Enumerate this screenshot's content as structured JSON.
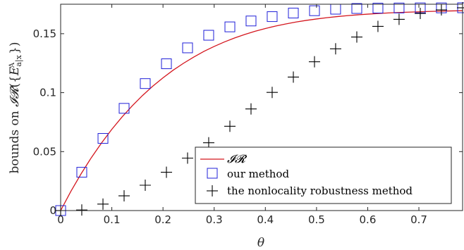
{
  "chart_data": {
    "type": "line",
    "xlabel": "θ",
    "ylabel": "bounds on 𝓘𝓡({E^A_{a|x}})",
    "xlim": [
      0,
      0.785398
    ],
    "ylim": [
      0,
      0.175
    ],
    "xticks": [
      0,
      0.1,
      0.2,
      0.3,
      0.4,
      0.5,
      0.6,
      0.7
    ],
    "xtick_labels": [
      "0",
      "0.1",
      "0.2",
      "0.3",
      "0.4",
      "0.5",
      "0.6",
      "0.7"
    ],
    "yticks": [
      0,
      0.05,
      0.1,
      0.15
    ],
    "ytick_labels": [
      "0",
      "0.05",
      "0.1",
      "0.15"
    ],
    "grid": false,
    "legend_position": "bottom-right",
    "series": [
      {
        "name": "𝓘𝓡",
        "style": "line",
        "color": "#d4161e",
        "x": [
          0,
          0.02,
          0.04,
          0.06,
          0.08,
          0.1,
          0.12,
          0.14,
          0.16,
          0.18,
          0.2,
          0.22,
          0.24,
          0.26,
          0.28,
          0.3,
          0.32,
          0.34,
          0.36,
          0.38,
          0.4,
          0.42,
          0.44,
          0.46,
          0.48,
          0.5,
          0.52,
          0.54,
          0.56,
          0.58,
          0.6,
          0.62,
          0.64,
          0.66,
          0.68,
          0.7,
          0.72,
          0.74,
          0.76,
          0.785
        ],
        "y": [
          0,
          0.0163,
          0.0312,
          0.0449,
          0.0574,
          0.0689,
          0.0794,
          0.0889,
          0.0976,
          0.1055,
          0.1126,
          0.1191,
          0.1249,
          0.1302,
          0.135,
          0.1392,
          0.143,
          0.1464,
          0.1494,
          0.1521,
          0.1544,
          0.1565,
          0.1583,
          0.1599,
          0.1613,
          0.1625,
          0.1636,
          0.1645,
          0.1653,
          0.166,
          0.1666,
          0.1671,
          0.1676,
          0.168,
          0.1683,
          0.1686,
          0.1689,
          0.1691,
          0.1693,
          0.1695
        ]
      },
      {
        "name": "our method",
        "style": "square",
        "color": "#2020d8",
        "x": [
          0,
          0.0413,
          0.0827,
          0.124,
          0.1653,
          0.2067,
          0.248,
          0.2893,
          0.3307,
          0.372,
          0.4133,
          0.4547,
          0.496,
          0.5373,
          0.5787,
          0.62,
          0.6613,
          0.7027,
          0.744,
          0.7854
        ],
        "y": [
          0,
          0.0325,
          0.0612,
          0.0867,
          0.1077,
          0.1245,
          0.138,
          0.1487,
          0.1558,
          0.1608,
          0.1645,
          0.1675,
          0.1695,
          0.1708,
          0.1714,
          0.1717,
          0.1718,
          0.1719,
          0.1719,
          0.172
        ]
      },
      {
        "name": "the nonlocality robustness method",
        "style": "plus",
        "color": "#000000",
        "x": [
          0,
          0.0413,
          0.0827,
          0.124,
          0.1653,
          0.2067,
          0.248,
          0.2893,
          0.3307,
          0.372,
          0.4133,
          0.4547,
          0.496,
          0.5373,
          0.5787,
          0.62,
          0.6613,
          0.7027,
          0.744,
          0.7854
        ],
        "y": [
          0,
          0.0005,
          0.0055,
          0.0125,
          0.0215,
          0.0325,
          0.0445,
          0.0575,
          0.0715,
          0.0862,
          0.1002,
          0.1132,
          0.1262,
          0.1372,
          0.1472,
          0.1562,
          0.1622,
          0.1672,
          0.1702,
          0.172
        ]
      }
    ]
  }
}
